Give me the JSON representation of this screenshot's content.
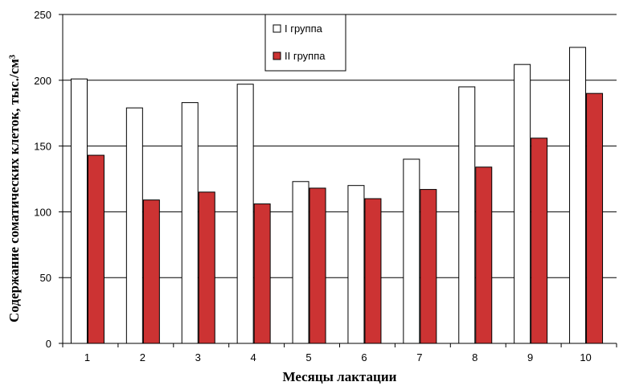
{
  "chart_data": {
    "type": "bar",
    "title": "",
    "xlabel": "Месяцы лактации",
    "ylabel": "Содержание соматических клеток, тыс./см³",
    "categories": [
      "1",
      "2",
      "3",
      "4",
      "5",
      "6",
      "7",
      "8",
      "9",
      "10"
    ],
    "series": [
      {
        "name": "I группа",
        "color": "#ffffff",
        "values": [
          201,
          179,
          183,
          197,
          123,
          120,
          140,
          195,
          212,
          225
        ]
      },
      {
        "name": "II группа",
        "color": "#cc3333",
        "values": [
          143,
          109,
          115,
          106,
          118,
          110,
          117,
          134,
          156,
          190
        ]
      }
    ],
    "ylim": [
      0,
      250
    ],
    "yticks": [
      "0",
      "50",
      "100",
      "150",
      "200",
      "250"
    ],
    "grid": true,
    "legend_position": "top-center"
  }
}
